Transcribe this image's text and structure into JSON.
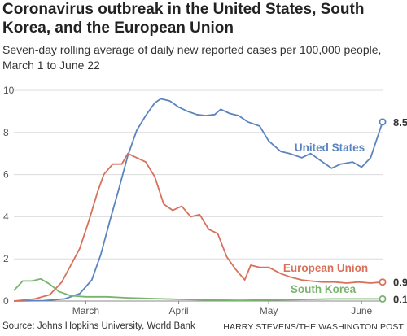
{
  "title": "Coronavirus outbreak in the United States, South Korea, and the European Union",
  "subtitle": "Seven-day rolling average of daily new reported cases per 100,000 people, March 1 to June 22",
  "source": "Source: Johns Hopkins University, World Bank",
  "credit": "HARRY STEVENS/THE WASHINGTON POST",
  "chart_data": {
    "type": "line",
    "title": "Coronavirus outbreak in the United States, South Korea, and the European Union",
    "subtitle": "Seven-day rolling average of daily new reported cases per 100,000 people, March 1 to June 22",
    "ylim": [
      0,
      10
    ],
    "yticks": [
      0,
      2,
      4,
      6,
      8,
      10
    ],
    "xlim": [
      "2020-02-20",
      "2020-06-22"
    ],
    "xticks": [
      {
        "label": "March",
        "date": "2020-03-15"
      },
      {
        "label": "April",
        "date": "2020-04-15"
      },
      {
        "label": "May",
        "date": "2020-05-15"
      },
      {
        "label": "June",
        "date": "2020-06-15"
      }
    ],
    "grid": true,
    "series": [
      {
        "name": "United States",
        "color": "#5b84bf",
        "end_label": "8.5",
        "points": [
          [
            "2020-02-20",
            0.0
          ],
          [
            "2020-03-01",
            0.02
          ],
          [
            "2020-03-08",
            0.1
          ],
          [
            "2020-03-13",
            0.35
          ],
          [
            "2020-03-17",
            1.0
          ],
          [
            "2020-03-20",
            2.2
          ],
          [
            "2020-03-23",
            3.8
          ],
          [
            "2020-03-26",
            5.3
          ],
          [
            "2020-03-29",
            6.9
          ],
          [
            "2020-04-01",
            8.1
          ],
          [
            "2020-04-04",
            8.8
          ],
          [
            "2020-04-07",
            9.4
          ],
          [
            "2020-04-09",
            9.6
          ],
          [
            "2020-04-12",
            9.5
          ],
          [
            "2020-04-15",
            9.2
          ],
          [
            "2020-04-18",
            9.0
          ],
          [
            "2020-04-21",
            8.85
          ],
          [
            "2020-04-24",
            8.8
          ],
          [
            "2020-04-27",
            8.85
          ],
          [
            "2020-04-29",
            9.1
          ],
          [
            "2020-05-02",
            8.9
          ],
          [
            "2020-05-05",
            8.8
          ],
          [
            "2020-05-08",
            8.5
          ],
          [
            "2020-05-12",
            8.3
          ],
          [
            "2020-05-15",
            7.6
          ],
          [
            "2020-05-19",
            7.1
          ],
          [
            "2020-05-22",
            7.0
          ],
          [
            "2020-05-26",
            6.8
          ],
          [
            "2020-05-29",
            7.0
          ],
          [
            "2020-06-02",
            6.6
          ],
          [
            "2020-06-05",
            6.3
          ],
          [
            "2020-06-08",
            6.5
          ],
          [
            "2020-06-12",
            6.6
          ],
          [
            "2020-06-15",
            6.35
          ],
          [
            "2020-06-18",
            6.8
          ],
          [
            "2020-06-22",
            8.5
          ]
        ]
      },
      {
        "name": "European Union",
        "color": "#d9705c",
        "end_label": "0.9",
        "points": [
          [
            "2020-02-20",
            0.0
          ],
          [
            "2020-02-27",
            0.1
          ],
          [
            "2020-03-03",
            0.3
          ],
          [
            "2020-03-07",
            0.9
          ],
          [
            "2020-03-10",
            1.7
          ],
          [
            "2020-03-13",
            2.5
          ],
          [
            "2020-03-16",
            3.8
          ],
          [
            "2020-03-19",
            5.2
          ],
          [
            "2020-03-21",
            6.0
          ],
          [
            "2020-03-24",
            6.5
          ],
          [
            "2020-03-27",
            6.5
          ],
          [
            "2020-03-29",
            7.0
          ],
          [
            "2020-04-01",
            6.8
          ],
          [
            "2020-04-04",
            6.6
          ],
          [
            "2020-04-07",
            5.9
          ],
          [
            "2020-04-10",
            4.6
          ],
          [
            "2020-04-13",
            4.3
          ],
          [
            "2020-04-16",
            4.5
          ],
          [
            "2020-04-19",
            4.0
          ],
          [
            "2020-04-22",
            4.1
          ],
          [
            "2020-04-25",
            3.4
          ],
          [
            "2020-04-28",
            3.2
          ],
          [
            "2020-05-01",
            2.1
          ],
          [
            "2020-05-04",
            1.5
          ],
          [
            "2020-05-07",
            1.0
          ],
          [
            "2020-05-09",
            1.7
          ],
          [
            "2020-05-12",
            1.6
          ],
          [
            "2020-05-15",
            1.6
          ],
          [
            "2020-05-19",
            1.3
          ],
          [
            "2020-05-22",
            1.15
          ],
          [
            "2020-05-26",
            1.0
          ],
          [
            "2020-05-29",
            0.95
          ],
          [
            "2020-06-02",
            0.9
          ],
          [
            "2020-06-06",
            0.9
          ],
          [
            "2020-06-10",
            0.85
          ],
          [
            "2020-06-14",
            0.9
          ],
          [
            "2020-06-18",
            0.85
          ],
          [
            "2020-06-22",
            0.9
          ]
        ]
      },
      {
        "name": "South Korea",
        "color": "#79b46d",
        "end_label": "0.1",
        "points": [
          [
            "2020-02-20",
            0.5
          ],
          [
            "2020-02-23",
            0.95
          ],
          [
            "2020-02-26",
            0.95
          ],
          [
            "2020-02-29",
            1.05
          ],
          [
            "2020-03-03",
            0.8
          ],
          [
            "2020-03-06",
            0.45
          ],
          [
            "2020-03-10",
            0.25
          ],
          [
            "2020-03-15",
            0.2
          ],
          [
            "2020-03-22",
            0.2
          ],
          [
            "2020-03-29",
            0.15
          ],
          [
            "2020-04-05",
            0.12
          ],
          [
            "2020-04-15",
            0.08
          ],
          [
            "2020-04-25",
            0.05
          ],
          [
            "2020-05-05",
            0.03
          ],
          [
            "2020-05-15",
            0.05
          ],
          [
            "2020-05-25",
            0.07
          ],
          [
            "2020-06-05",
            0.1
          ],
          [
            "2020-06-15",
            0.1
          ],
          [
            "2020-06-22",
            0.1
          ]
        ]
      }
    ]
  }
}
